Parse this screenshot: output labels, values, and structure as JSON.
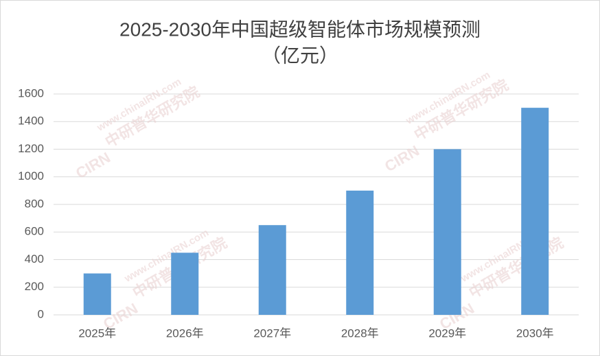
{
  "chart_data": {
    "type": "bar",
    "title": "2025-2030年中国超级智能体市场规模预测",
    "subtitle": "（亿元）",
    "categories": [
      "2025年",
      "2026年",
      "2027年",
      "2028年",
      "2029年",
      "2030年"
    ],
    "values": [
      300,
      450,
      650,
      900,
      1200,
      1500
    ],
    "color": "#5b9bd5",
    "ylim": [
      0,
      1600
    ],
    "yticks": [
      0,
      200,
      400,
      600,
      800,
      1000,
      1200,
      1400,
      1600
    ],
    "grid": true,
    "watermark": {
      "site": "www.chinaIRN.com",
      "name": "中研普华研究院",
      "logo": "CIRN"
    }
  }
}
